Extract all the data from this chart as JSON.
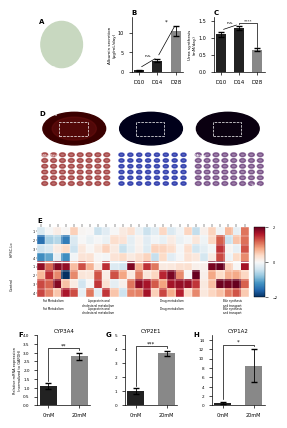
{
  "panel_B": {
    "title": "B",
    "categories": [
      "D10",
      "D14",
      "D28"
    ],
    "values": [
      0.3,
      2.8,
      10.5
    ],
    "errors": [
      0.1,
      0.4,
      1.2
    ],
    "ylabel": "Albumin secretion\n(ug/mL/day)",
    "ylim": [
      0,
      14
    ],
    "bar_colors": [
      "#222222",
      "#222222",
      "#888888"
    ],
    "sig_pairs": [
      [
        "D10",
        "D14",
        "n.s."
      ],
      [
        "D14",
        "D28",
        "*"
      ]
    ]
  },
  "panel_C": {
    "title": "C",
    "categories": [
      "D10",
      "D14",
      "D28"
    ],
    "values": [
      1.1,
      1.3,
      0.65
    ],
    "errors": [
      0.08,
      0.06,
      0.05
    ],
    "ylabel": "Urea synthesis\n(mM/day)",
    "ylim": [
      0,
      1.6
    ],
    "bar_colors": [
      "#222222",
      "#222222",
      "#888888"
    ],
    "sig_pairs": [
      [
        "D10",
        "D14",
        "n.s."
      ],
      [
        "D14",
        "D28",
        "****"
      ]
    ]
  },
  "panel_F": {
    "title": "F",
    "subtitle": "CYP3A4",
    "categories": [
      "0mM",
      "20mM"
    ],
    "values": [
      1.1,
      2.8
    ],
    "errors": [
      0.15,
      0.2
    ],
    "ylabel": "Relative mRNA expression\n(normalized to GAPDH)",
    "ylim": [
      0,
      4
    ],
    "bar_colors": [
      "#222222",
      "#888888"
    ],
    "sig": "**"
  },
  "panel_G": {
    "title": "G",
    "subtitle": "CYP2E1",
    "categories": [
      "0mM",
      "20mM"
    ],
    "values": [
      1.0,
      3.7
    ],
    "errors": [
      0.2,
      0.2
    ],
    "ylabel": "Relative mRNA expression\n(normalized to GAPDH)",
    "ylim": [
      0,
      5
    ],
    "bar_colors": [
      "#222222",
      "#888888"
    ],
    "sig": "***"
  },
  "panel_H": {
    "title": "H",
    "subtitle": "CYP1A2",
    "categories": [
      "0mM",
      "20mM"
    ],
    "values": [
      0.5,
      8.5
    ],
    "errors": [
      0.3,
      3.5
    ],
    "ylabel": "Relative mRNA expression\n(normalized to GAPDH)",
    "ylim": [
      0,
      15
    ],
    "bar_colors": [
      "#222222",
      "#888888"
    ],
    "sig": "*"
  },
  "heatmap": {
    "n_cols": 26,
    "n_rows_control": 4,
    "n_rows_hipsc": 4,
    "vmin": -2,
    "vmax": 2,
    "colorbar_ticks": [
      2,
      0,
      -2
    ],
    "section_labels": [
      "Fat Metabolism",
      "Lipoprotein and\ncholesterol metabolism",
      "Drug metabolism",
      "Bile synthesis\nand transport"
    ],
    "section_cols": [
      4,
      7,
      11,
      4
    ],
    "row_labels_control": [
      "1",
      "2",
      "3",
      "4"
    ],
    "row_labels_hipsc": [
      "1",
      "2",
      "3",
      "4"
    ],
    "group_labels": [
      "Control",
      "hiPSC-Lo"
    ]
  }
}
